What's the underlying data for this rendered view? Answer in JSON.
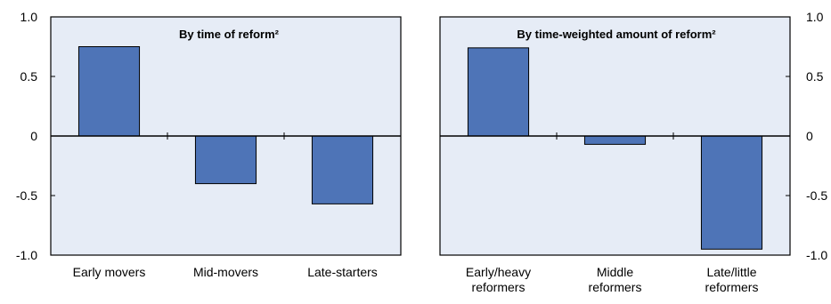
{
  "colors": {
    "bar": "#4e74b7",
    "bar_stroke": "#000000",
    "panel_bg": "#e6ecf6",
    "axis": "#000000"
  },
  "chart_data": [
    {
      "type": "bar",
      "title": "By time of reform²",
      "categories": [
        [
          "Early movers"
        ],
        [
          "Mid-movers"
        ],
        [
          "Late-starters"
        ]
      ],
      "values": [
        0.75,
        -0.4,
        -0.57
      ],
      "ylim": [
        -1.0,
        1.0
      ],
      "yticks": [
        "-1.0",
        "-0.5",
        "0",
        "0.5",
        "1.0"
      ],
      "ytick_values": [
        -1.0,
        -0.5,
        0,
        0.5,
        1.0
      ],
      "ytick_side": "left",
      "grid": false
    },
    {
      "type": "bar",
      "title": "By time-weighted amount of reform²",
      "categories": [
        [
          "Early/heavy",
          "reformers"
        ],
        [
          "Middle",
          "reformers"
        ],
        [
          "Late/little",
          "reformers"
        ]
      ],
      "values": [
        0.74,
        -0.07,
        -0.95
      ],
      "ylim": [
        -1.0,
        1.0
      ],
      "yticks": [
        "-1.0",
        "-0.5",
        "0",
        "0.5",
        "1.0"
      ],
      "ytick_values": [
        -1.0,
        -0.5,
        0,
        0.5,
        1.0
      ],
      "ytick_side": "right",
      "grid": false
    }
  ]
}
